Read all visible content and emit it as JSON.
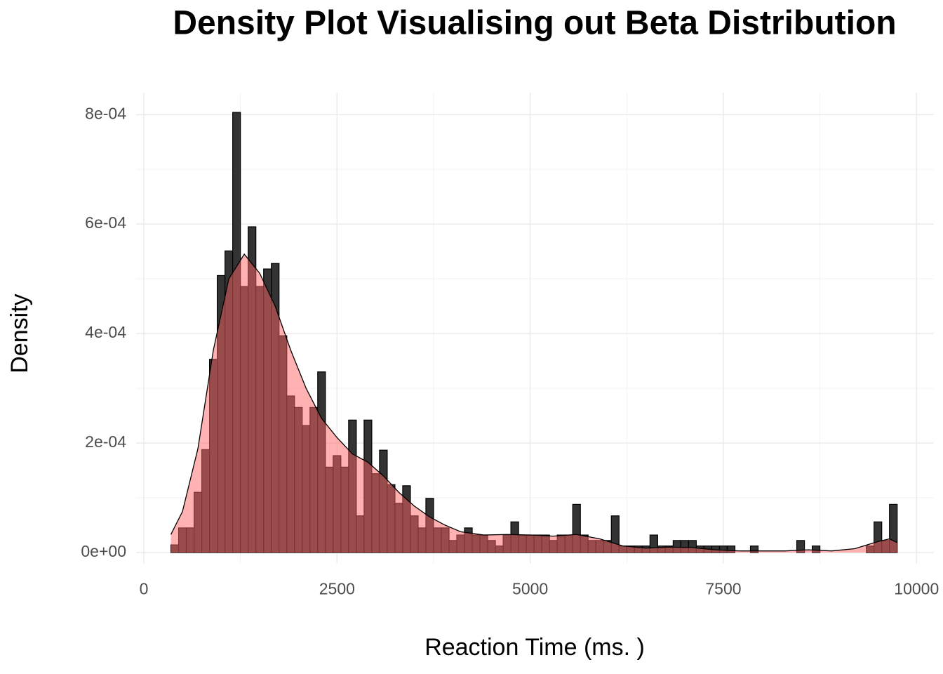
{
  "chart_data": {
    "type": "histogram",
    "title": "Density Plot Visualising out Beta Distribution",
    "x_label": "Reaction Time (ms. )",
    "y_label": "Density",
    "bins": [
      350,
      450,
      550,
      650,
      750,
      850,
      950,
      1050,
      1150,
      1250,
      1350,
      1450,
      1550,
      1650,
      1750,
      1850,
      1950,
      2050,
      2150,
      2250,
      2350,
      2450,
      2550,
      2650,
      2750,
      2850,
      2950,
      3050,
      3150,
      3250,
      3350,
      3450,
      3550,
      3650,
      3750,
      3850,
      3950,
      4050,
      4150,
      4250,
      4350,
      4450,
      4550,
      4650,
      4750,
      4850,
      4950,
      5050,
      5150,
      5250,
      5350,
      5450,
      5550,
      5650,
      5750,
      5850,
      5950,
      6050,
      6150,
      6250,
      6350,
      6450,
      6550,
      6650,
      6750,
      6850,
      6950,
      7050,
      7150,
      7250,
      7350,
      7450,
      7550,
      7650,
      7750,
      7850,
      7950,
      8050,
      8150,
      8250,
      8350,
      8450,
      8550,
      8650,
      8750,
      8850,
      8950,
      9050,
      9150,
      9250,
      9350,
      9450,
      9550,
      9650,
      9750
    ],
    "values": [
      1.4e-05,
      4.5e-05,
      4.5e-05,
      0.00011,
      0.000188,
      0.000353,
      0.000506,
      0.000551,
      0.000804,
      0.000486,
      0.000595,
      0.000486,
      0.000518,
      0.000528,
      0.000396,
      0.000286,
      0.000265,
      0.000232,
      0.000265,
      0.00033,
      0.000156,
      0.000177,
      0.000156,
      0.000242,
      6.7e-05,
      0.000242,
      0.000144,
      0.000187,
      0.000124,
      9e-05,
      0.000122,
      6.7e-05,
      4.5e-05,
      9.9e-05,
      4.5e-05,
      4.5e-05,
      2.2e-05,
      3.2e-05,
      4.5e-05,
      3.2e-05,
      3.2e-05,
      2.2e-05,
      1.2e-05,
      3.2e-05,
      5.6e-05,
      3.2e-05,
      3.2e-05,
      3.2e-05,
      3.2e-05,
      2.2e-05,
      3.2e-05,
      3.2e-05,
      8.8e-05,
      3.2e-05,
      2.2e-05,
      2.2e-05,
      2.2e-05,
      6.7e-05,
      1.2e-05,
      1.2e-05,
      1.2e-05,
      1.2e-05,
      3.2e-05,
      1.2e-05,
      1.2e-05,
      2.2e-05,
      2.2e-05,
      2.2e-05,
      1.2e-05,
      1.2e-05,
      1.2e-05,
      1.2e-05,
      1.2e-05,
      0,
      0,
      1.2e-05,
      0,
      0,
      0,
      0,
      0,
      2.2e-05,
      0,
      1.2e-05,
      0,
      0,
      0,
      0,
      0,
      0,
      1.2e-05,
      5.6e-05,
      2.2e-05,
      8.8e-05
    ],
    "bar_color": "#333333",
    "density": {
      "x": [
        350,
        500,
        700,
        900,
        1100,
        1300,
        1500,
        1700,
        1900,
        2100,
        2300,
        2500,
        2700,
        2900,
        3100,
        3300,
        3500,
        3700,
        3900,
        4100,
        4400,
        4700,
        5000,
        5300,
        5600,
        5900,
        6200,
        6500,
        6800,
        7100,
        7400,
        7700,
        8000,
        8300,
        8600,
        8900,
        9200,
        9500,
        9650,
        9750
      ],
      "y": [
        3.3e-05,
        7.5e-05,
        0.00019,
        0.00037,
        0.0005,
        0.000545,
        0.00051,
        0.00045,
        0.00037,
        0.0003,
        0.000245,
        0.00021,
        0.00018,
        0.000165,
        0.00014,
        0.00011,
        8.5e-05,
        6.5e-05,
        5e-05,
        3.8e-05,
        3.2e-05,
        3.3e-05,
        3.2e-05,
        3e-05,
        3.3e-05,
        2.5e-05,
        1.2e-05,
        8e-06,
        1e-05,
        9e-06,
        5e-06,
        3e-06,
        3e-06,
        3e-06,
        5e-06,
        3e-06,
        7e-06,
        2e-05,
        2.5e-05,
        1.8e-05
      ],
      "color": "#ff6666"
    },
    "xlim": [
      -100,
      10220
    ],
    "ylim": [
      -2e-05,
      0.00084
    ],
    "xticks": [
      0,
      2500,
      5000,
      7500,
      10000
    ],
    "yticks": [
      {
        "value": 0,
        "label": "0e+00"
      },
      {
        "value": 0.0002,
        "label": "2e-04"
      },
      {
        "value": 0.0004,
        "label": "4e-04"
      },
      {
        "value": 0.0006,
        "label": "6e-04"
      },
      {
        "value": 0.0008,
        "label": "8e-04"
      }
    ],
    "grid": true
  }
}
